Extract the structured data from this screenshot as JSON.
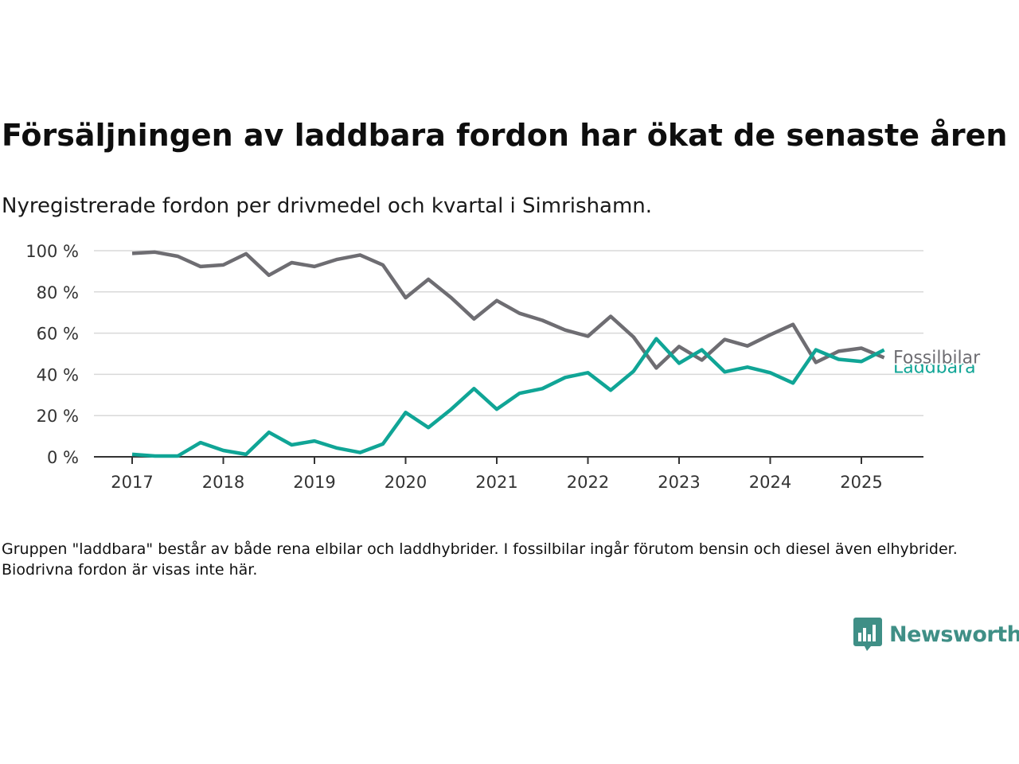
{
  "title": "Försäljningen av laddbara fordon har ökat de senaste åren",
  "subtitle": "Nyregistrerade fordon per drivmedel och kvartal i Simrishamn.",
  "note": "Gruppen \"laddbara\" består av både rena elbilar och laddhybrider. I fossilbilar ingår förutom bensin och diesel även elhybrider. Biodrivna fordon är visas inte här.",
  "brand": {
    "name": "Newsworthy",
    "icon": "newsworthy-logo-icon",
    "color": "#3f8f86"
  },
  "chart_data": {
    "type": "line",
    "x": [
      "2017-Q1",
      "2017-Q2",
      "2017-Q3",
      "2017-Q4",
      "2018-Q1",
      "2018-Q2",
      "2018-Q3",
      "2018-Q4",
      "2019-Q1",
      "2019-Q2",
      "2019-Q3",
      "2019-Q4",
      "2020-Q1",
      "2020-Q2",
      "2020-Q3",
      "2020-Q4",
      "2021-Q1",
      "2021-Q2",
      "2021-Q3",
      "2021-Q4",
      "2022-Q1",
      "2022-Q2",
      "2022-Q3",
      "2022-Q4",
      "2023-Q1",
      "2023-Q2",
      "2023-Q3",
      "2023-Q4",
      "2024-Q1",
      "2024-Q2",
      "2024-Q3",
      "2024-Q4",
      "2025-Q1",
      "2025-Q2"
    ],
    "series": [
      {
        "name": "Fossilbilar",
        "color": "#6e6d72",
        "values": [
          98.7,
          99.3,
          97.3,
          92.3,
          93.1,
          98.5,
          88.1,
          94.2,
          92.3,
          95.8,
          97.9,
          93.1,
          77.2,
          86.1,
          77.2,
          66.9,
          75.8,
          69.6,
          66.2,
          61.5,
          58.5,
          68.1,
          58.1,
          43.1,
          53.5,
          46.9,
          56.9,
          53.8,
          59.2,
          64.2,
          45.8,
          51.2,
          52.7,
          48.1
        ]
      },
      {
        "name": "Laddbara",
        "color": "#10a596",
        "values": [
          1.2,
          0.4,
          0.4,
          6.9,
          3.1,
          1.2,
          11.9,
          5.8,
          7.7,
          4.2,
          2.1,
          6.2,
          21.5,
          14.2,
          23.1,
          33.1,
          23.1,
          30.8,
          33.1,
          38.5,
          40.8,
          32.3,
          41.5,
          57.3,
          45.4,
          51.9,
          41.2,
          43.5,
          40.8,
          35.8,
          51.9,
          47.3,
          46.2,
          51.9
        ]
      }
    ],
    "x_tick_labels": [
      "2017",
      "2018",
      "2019",
      "2020",
      "2021",
      "2022",
      "2023",
      "2024",
      "2025"
    ],
    "y_tick_labels": [
      "0 %",
      "20 %",
      "40 %",
      "60 %",
      "80 %",
      "100 %"
    ],
    "y_ticks": [
      0,
      20,
      40,
      60,
      80,
      100
    ],
    "ylim": [
      0,
      100
    ],
    "xlabel": "",
    "ylabel": "",
    "grid": "horizontal",
    "legend": "direct labels at line ends"
  }
}
